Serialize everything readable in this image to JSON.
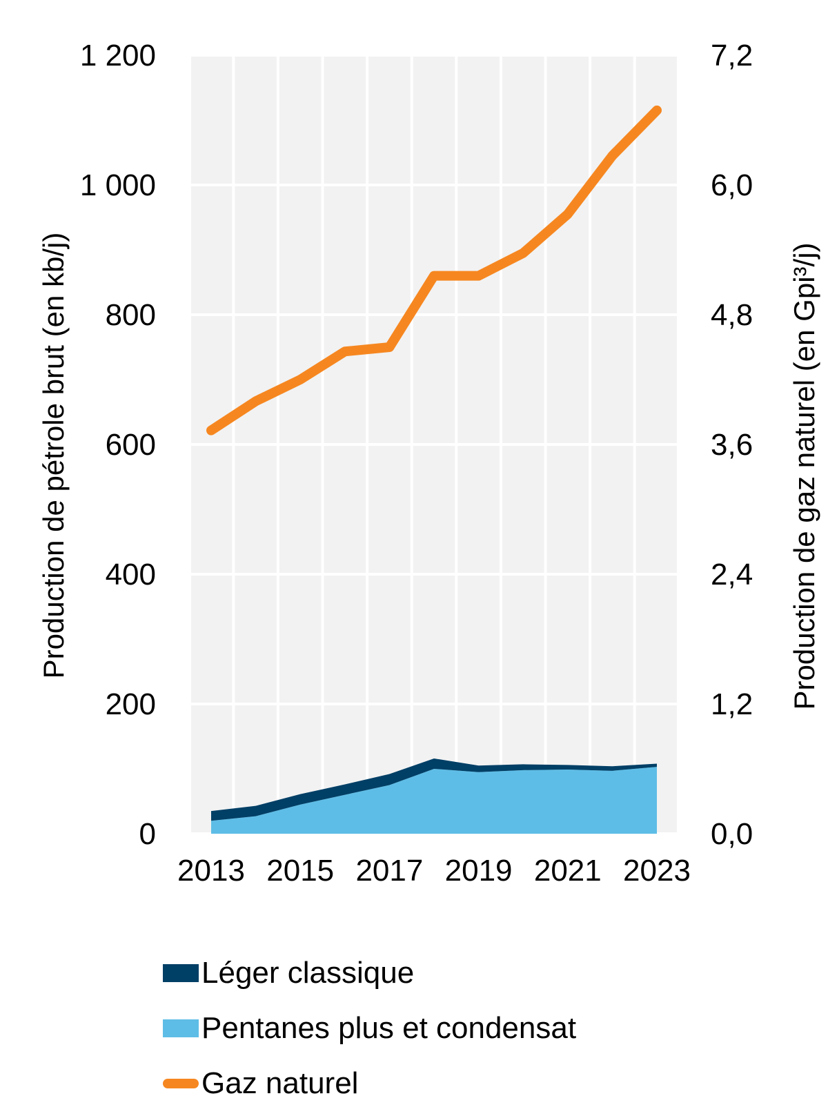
{
  "chart_data": {
    "type": "area",
    "x": [
      2013,
      2014,
      2015,
      2016,
      2017,
      2018,
      2019,
      2020,
      2021,
      2022,
      2023
    ],
    "x_tick_labels": [
      "2013",
      "2015",
      "2017",
      "2019",
      "2021",
      "2023"
    ],
    "y_left": {
      "label": "Production de pétrole brut (en kb/j)",
      "ylim": [
        0,
        1200
      ],
      "tick_labels": [
        "0",
        "200",
        "400",
        "600",
        "800",
        "1 000",
        "1 200"
      ]
    },
    "y_right": {
      "label": "Production de gaz naturel  (en Gpi³/j)",
      "ylim": [
        0,
        7.2
      ],
      "tick_labels": [
        "0,0",
        "1,2",
        "2,4",
        "3,6",
        "4,8",
        "6,0",
        "7,2"
      ]
    },
    "grid": true,
    "legend_position": "bottom",
    "series": [
      {
        "name": "Pentanes plus et condensat",
        "type": "area",
        "axis": "left",
        "stack": true,
        "color": "#5ebde6",
        "values": [
          20,
          27,
          45,
          60,
          75,
          100,
          95,
          98,
          99,
          97,
          103
        ]
      },
      {
        "name": "Léger classique",
        "type": "area",
        "axis": "left",
        "stack": true,
        "color": "#003f66",
        "values": [
          15,
          16,
          16,
          16,
          17,
          16,
          10,
          9,
          7,
          7,
          5
        ]
      },
      {
        "name": "Gaz naturel",
        "type": "line",
        "axis": "right",
        "color": "#f68720",
        "values": [
          3.73,
          4.0,
          4.2,
          4.46,
          4.5,
          5.16,
          5.16,
          5.37,
          5.73,
          6.27,
          6.69
        ]
      }
    ]
  },
  "legend": {
    "items": [
      {
        "label": "Léger classique",
        "color": "#003f66",
        "kind": "area"
      },
      {
        "label": "Pentanes plus et condensat",
        "color": "#5ebde6",
        "kind": "area"
      },
      {
        "label": "Gaz naturel",
        "color": "#f68720",
        "kind": "line"
      }
    ]
  }
}
